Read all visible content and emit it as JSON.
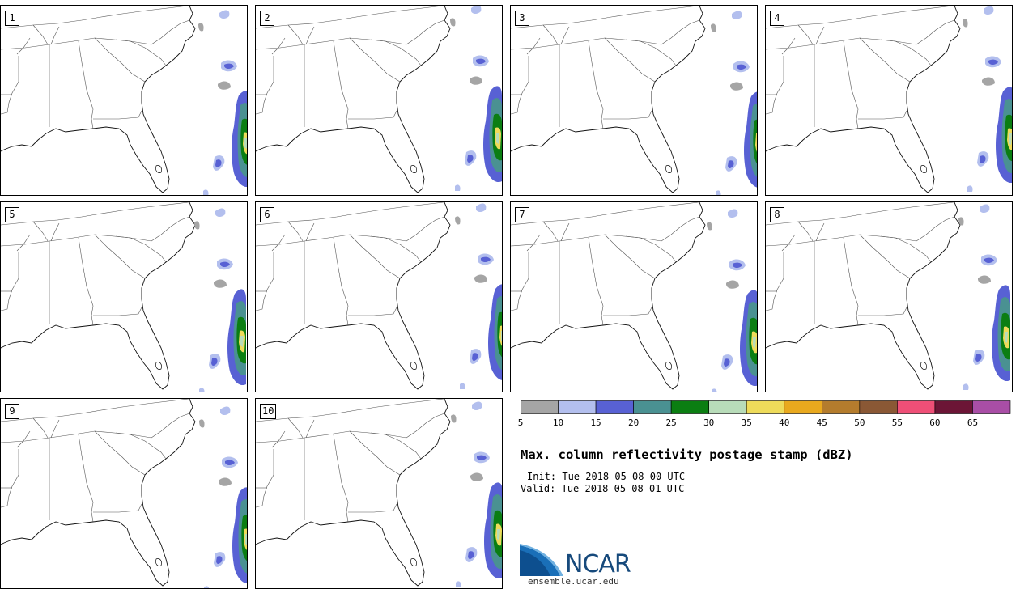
{
  "panels": [
    {
      "number": "1"
    },
    {
      "number": "2"
    },
    {
      "number": "3"
    },
    {
      "number": "4"
    },
    {
      "number": "5"
    },
    {
      "number": "6"
    },
    {
      "number": "7"
    },
    {
      "number": "8"
    },
    {
      "number": "9"
    },
    {
      "number": "10"
    }
  ],
  "colorbar": {
    "colors": [
      "#a5a5a5",
      "#b3bfee",
      "#5861d4",
      "#4a9192",
      "#0b7e12",
      "#b8dcb9",
      "#eedb5a",
      "#e9a91e",
      "#b47c2d",
      "#8a5835",
      "#ef4f77",
      "#6c1536",
      "#a94ea6"
    ],
    "labels": [
      "5",
      "10",
      "15",
      "20",
      "25",
      "30",
      "35",
      "40",
      "45",
      "50",
      "55",
      "60",
      "65"
    ]
  },
  "title": "Max. column reflectivity postage stamp (dBZ)",
  "init": {
    "label": "Init:",
    "value": "Tue 2018-05-08 00 UTC"
  },
  "valid": {
    "label": "Valid:",
    "value": "Tue 2018-05-08 01 UTC"
  },
  "logo": {
    "text": "NCAR",
    "website": "ensemble.ucar.edu"
  }
}
